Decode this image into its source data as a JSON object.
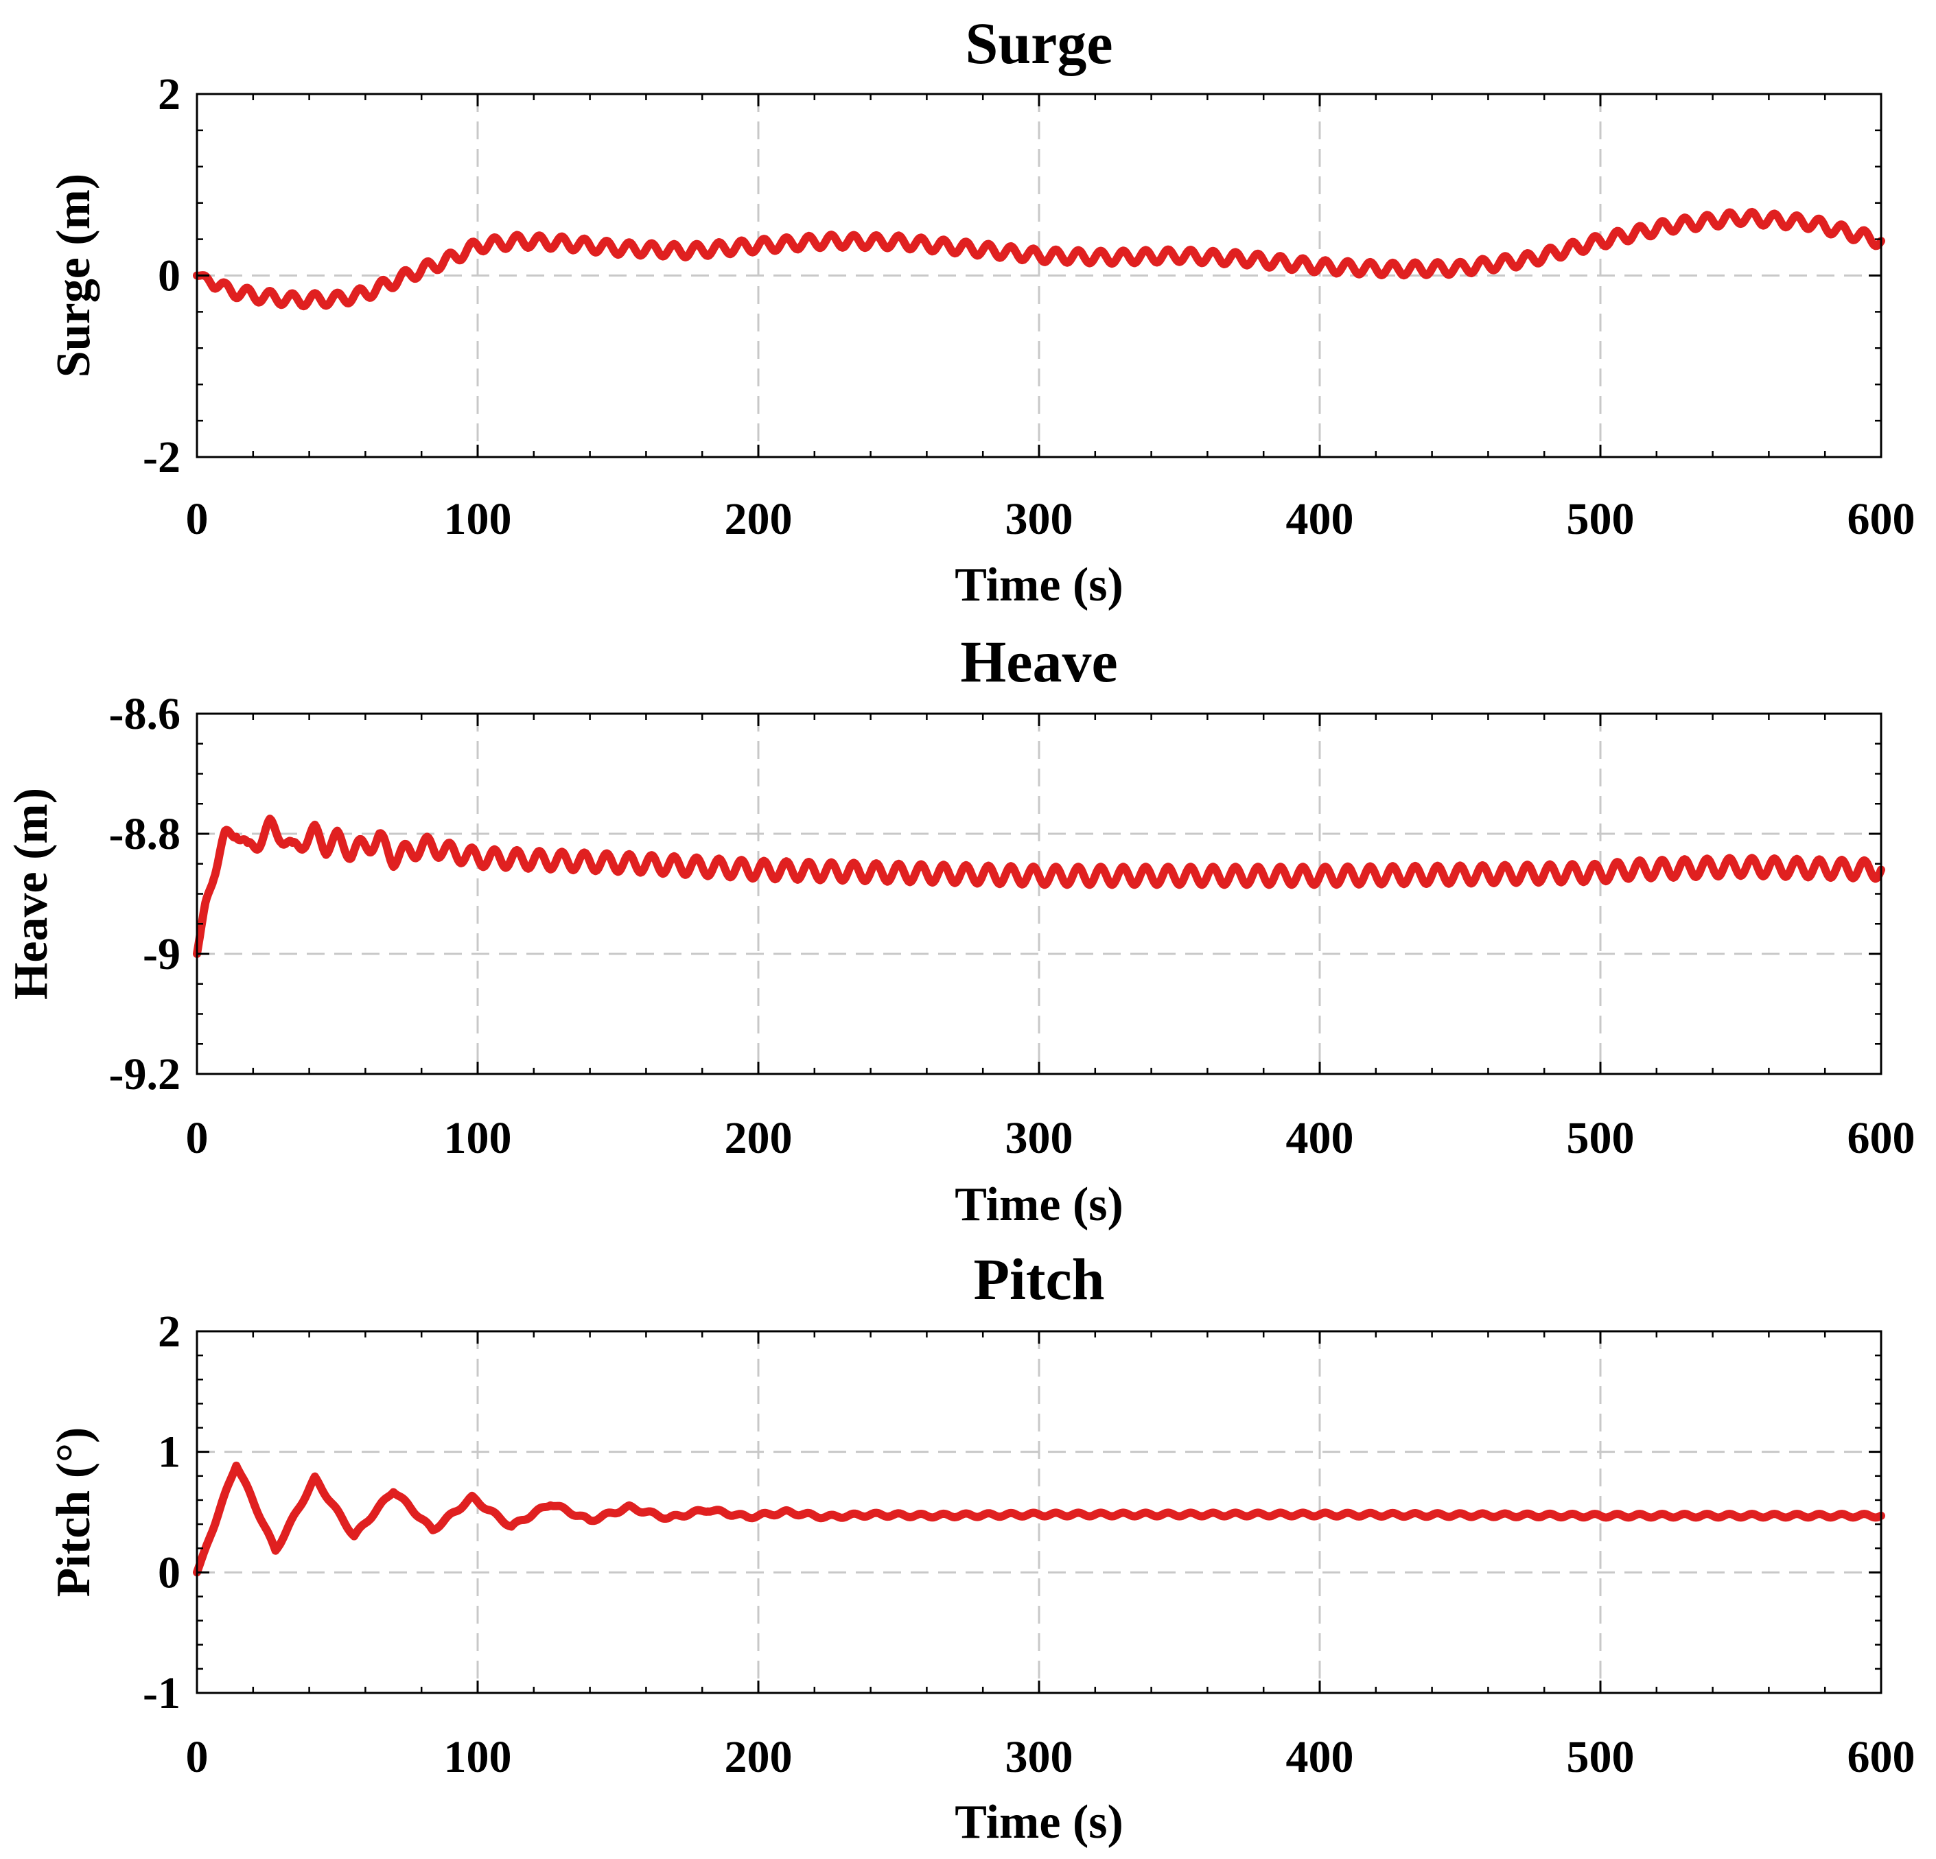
{
  "chart_data": [
    {
      "type": "line",
      "title": "Surge",
      "xlabel": "Time (s)",
      "ylabel": "Surge (m)",
      "xlim": [
        0,
        600
      ],
      "ylim": [
        -2,
        2
      ],
      "xticks": [
        0,
        100,
        200,
        300,
        400,
        500,
        600
      ],
      "yticks": [
        -2,
        0,
        2
      ],
      "xtick_labels": [
        "0",
        "100",
        "200",
        "300",
        "400",
        "500",
        "600"
      ],
      "ytick_labels": [
        "-2",
        "0",
        "2"
      ],
      "grid": true,
      "color": "#e02020",
      "series": [
        {
          "name": "Surge",
          "x": [
            0,
            5,
            10,
            20,
            35,
            50,
            60,
            75,
            90,
            100,
            115,
            130,
            150,
            175,
            200,
            225,
            250,
            275,
            300,
            325,
            350,
            375,
            400,
            425,
            450,
            475,
            500,
            525,
            550,
            575,
            600
          ],
          "values": [
            0,
            -0.05,
            -0.15,
            -0.22,
            -0.27,
            -0.26,
            -0.2,
            0.0,
            0.18,
            0.33,
            0.38,
            0.36,
            0.3,
            0.27,
            0.33,
            0.38,
            0.37,
            0.3,
            0.22,
            0.2,
            0.22,
            0.18,
            0.1,
            0.07,
            0.08,
            0.18,
            0.38,
            0.55,
            0.64,
            0.58,
            0.38
          ],
          "oscillation_amplitude": 0.07,
          "oscillation_period": 8
        }
      ]
    },
    {
      "type": "line",
      "title": "Heave",
      "xlabel": "Time (s)",
      "ylabel": "Heave (m)",
      "xlim": [
        0,
        600
      ],
      "ylim": [
        -9.2,
        -8.6
      ],
      "xticks": [
        0,
        100,
        200,
        300,
        400,
        500,
        600
      ],
      "yticks": [
        -9.2,
        -9,
        -8.8,
        -8.6
      ],
      "xtick_labels": [
        "0",
        "100",
        "200",
        "300",
        "400",
        "500",
        "600"
      ],
      "ytick_labels": [
        "-9.2",
        "-9",
        "-8.8",
        "-8.6"
      ],
      "grid": true,
      "color": "#e02020",
      "series": [
        {
          "name": "Heave",
          "x": [
            0,
            3,
            6,
            10,
            14,
            18,
            22,
            26,
            30,
            34,
            38,
            42,
            46,
            50,
            55,
            60,
            65,
            70,
            75,
            82,
            90,
            100,
            130,
            160,
            200,
            250,
            300,
            350,
            400,
            450,
            500,
            510,
            550,
            600
          ],
          "values": [
            -9.0,
            -8.92,
            -8.86,
            -8.81,
            -8.79,
            -8.83,
            -8.81,
            -8.79,
            -8.8,
            -8.83,
            -8.81,
            -8.8,
            -8.82,
            -8.81,
            -8.83,
            -8.82,
            -8.81,
            -8.84,
            -8.83,
            -8.82,
            -8.83,
            -8.84,
            -8.845,
            -8.85,
            -8.86,
            -8.865,
            -8.87,
            -8.87,
            -8.87,
            -8.868,
            -8.865,
            -8.86,
            -8.855,
            -8.86
          ],
          "oscillation_amplitude": 0.015,
          "oscillation_period": 8
        }
      ]
    },
    {
      "type": "line",
      "title": "Pitch",
      "xlabel": "Time (s)",
      "ylabel": "Pitch (°)",
      "xlim": [
        0,
        600
      ],
      "ylim": [
        -1,
        2
      ],
      "xticks": [
        0,
        100,
        200,
        300,
        400,
        500,
        600
      ],
      "yticks": [
        -1,
        0,
        1,
        2
      ],
      "xtick_labels": [
        "0",
        "100",
        "200",
        "300",
        "400",
        "500",
        "600"
      ],
      "ytick_labels": [
        "-1",
        "0",
        "1",
        "2"
      ],
      "grid": true,
      "color": "#e02020",
      "series": [
        {
          "name": "Pitch",
          "x": [
            0,
            14,
            28,
            42,
            56,
            70,
            84,
            98,
            112,
            126,
            140,
            154,
            168,
            182,
            196,
            210,
            224,
            240,
            260,
            300,
            400,
            500,
            600
          ],
          "values": [
            0,
            0.9,
            0.18,
            0.78,
            0.3,
            0.68,
            0.35,
            0.62,
            0.38,
            0.57,
            0.43,
            0.54,
            0.45,
            0.52,
            0.46,
            0.5,
            0.46,
            0.48,
            0.47,
            0.48,
            0.48,
            0.47,
            0.47
          ],
          "oscillation_amplitude": 0.015,
          "oscillation_period": 8
        }
      ]
    }
  ]
}
